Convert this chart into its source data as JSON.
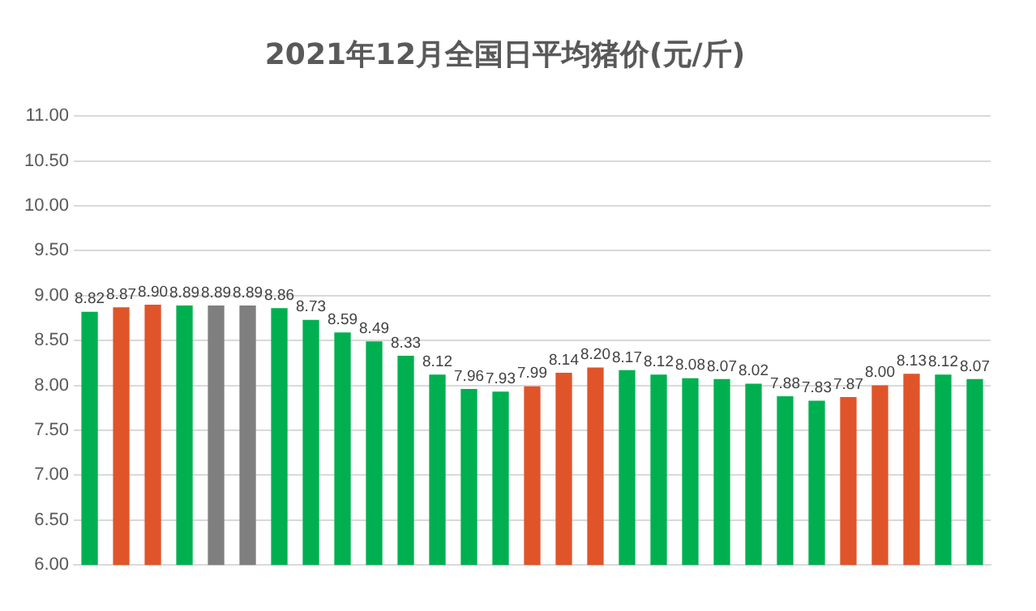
{
  "chart_data": {
    "type": "bar",
    "title": "2021年12月全国日平均猪价(元/斤)",
    "categories": [
      null,
      null,
      null,
      null,
      null,
      null,
      null,
      null,
      null,
      null,
      null,
      null,
      null,
      null,
      null,
      null,
      null,
      null,
      null,
      null,
      null,
      null,
      null,
      null,
      null,
      null,
      null,
      null,
      null
    ],
    "values": [
      8.82,
      8.87,
      8.9,
      8.89,
      8.89,
      8.89,
      8.86,
      8.73,
      8.59,
      8.49,
      8.33,
      8.12,
      7.96,
      7.93,
      7.99,
      8.14,
      8.2,
      8.17,
      8.12,
      8.08,
      8.07,
      8.02,
      7.88,
      7.83,
      7.87,
      8.0,
      8.13,
      8.12,
      8.07
    ],
    "value_labels": [
      "8.82",
      "8.87",
      "8.90",
      "8.89",
      "8.89",
      "8.89",
      "8.86",
      "8.73",
      "8.59",
      "8.49",
      "8.33",
      "8.12",
      "7.96",
      "7.93",
      "7.99",
      "8.14",
      "8.20",
      "8.17",
      "8.12",
      "8.08",
      "8.07",
      "8.02",
      "7.88",
      "7.83",
      "7.87",
      "8.00",
      "8.13",
      "8.12",
      "8.07"
    ],
    "colors": [
      "#00b050",
      "#e0542a",
      "#e0542a",
      "#00b050",
      "#7f7f7f",
      "#7f7f7f",
      "#00b050",
      "#00b050",
      "#00b050",
      "#00b050",
      "#00b050",
      "#00b050",
      "#00b050",
      "#00b050",
      "#e0542a",
      "#e0542a",
      "#e0542a",
      "#00b050",
      "#00b050",
      "#00b050",
      "#00b050",
      "#00b050",
      "#00b050",
      "#00b050",
      "#e0542a",
      "#e0542a",
      "#e0542a",
      "#00b050",
      "#00b050"
    ],
    "ylim": [
      6,
      11
    ],
    "yticks": [
      {
        "value": 6,
        "label": "6.00"
      },
      {
        "value": 6.5,
        "label": "6.50"
      },
      {
        "value": 7,
        "label": "7.00"
      },
      {
        "value": 7.5,
        "label": "7.50"
      },
      {
        "value": 8,
        "label": "8.00"
      },
      {
        "value": 8.5,
        "label": "8.50"
      },
      {
        "value": 9,
        "label": "9.00"
      },
      {
        "value": 9.5,
        "label": "9.50"
      },
      {
        "value": 10,
        "label": "10.00"
      },
      {
        "value": 10.5,
        "label": "10.50"
      },
      {
        "value": 11,
        "label": "11.00"
      }
    ],
    "grid": "y",
    "legend": false
  }
}
